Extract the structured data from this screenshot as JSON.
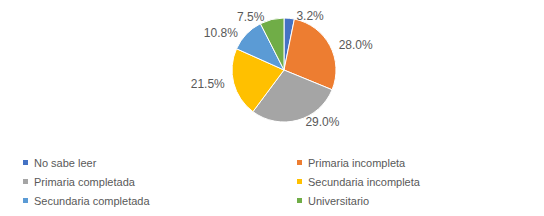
{
  "chart_data": {
    "type": "pie",
    "categories": [
      "No sabe leer",
      "Primaria incompleta",
      "Primaria completada",
      "Secundaria incompleta",
      "Secundaria completada",
      "Universitario"
    ],
    "values": [
      3.2,
      28.0,
      29.0,
      21.5,
      10.8,
      7.5
    ],
    "value_labels": [
      "3.2%",
      "28.0%",
      "29.0%",
      "21.5%",
      "10.8%",
      "7.5%"
    ],
    "colors": [
      "#4472c4",
      "#ed7d31",
      "#a5a5a5",
      "#ffc000",
      "#5b9bd5",
      "#70ad47"
    ],
    "data_labels": true,
    "legend": "bottom"
  }
}
